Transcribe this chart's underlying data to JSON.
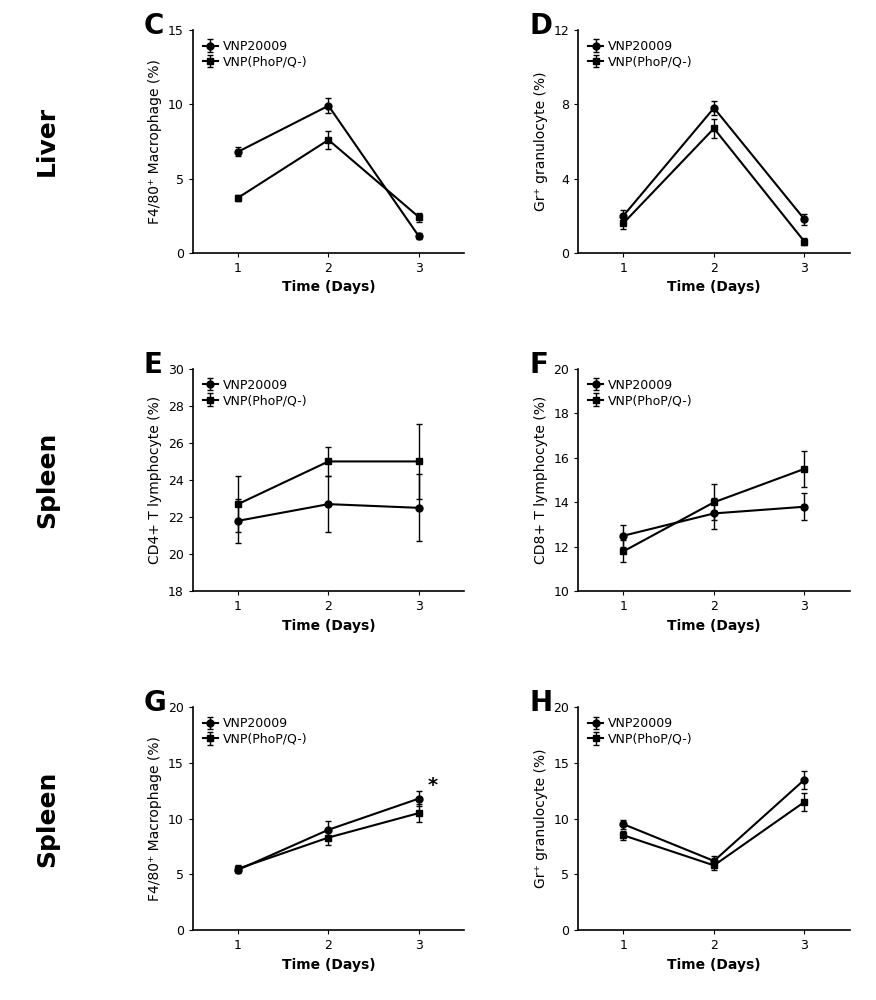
{
  "panels": [
    {
      "label": "C",
      "ylabel": "F4/80⁺ Macrophage (%)",
      "ylim": [
        0,
        15
      ],
      "yticks": [
        0,
        5,
        10,
        15
      ],
      "series1": {
        "y": [
          6.8,
          9.9,
          1.1
        ],
        "yerr": [
          0.3,
          0.5,
          0.2
        ]
      },
      "series2": {
        "y": [
          3.7,
          7.6,
          2.4
        ],
        "yerr": [
          0.2,
          0.6,
          0.3
        ]
      },
      "annotation": null,
      "legend_loc": "upper left"
    },
    {
      "label": "D",
      "ylabel": "Gr⁺ granulocyte (%)",
      "ylim": [
        0,
        12
      ],
      "yticks": [
        0,
        4,
        8,
        12
      ],
      "series1": {
        "y": [
          2.0,
          7.8,
          1.8
        ],
        "yerr": [
          0.3,
          0.4,
          0.3
        ]
      },
      "series2": {
        "y": [
          1.6,
          6.7,
          0.6
        ],
        "yerr": [
          0.3,
          0.5,
          0.2
        ]
      },
      "annotation": null,
      "legend_loc": "upper left"
    },
    {
      "label": "E",
      "ylabel": "CD4+ T lymphocyte (%)",
      "ylim": [
        18,
        30
      ],
      "yticks": [
        18,
        20,
        22,
        24,
        26,
        28,
        30
      ],
      "series1": {
        "y": [
          21.8,
          22.7,
          22.5
        ],
        "yerr": [
          1.2,
          1.5,
          1.8
        ]
      },
      "series2": {
        "y": [
          22.7,
          25.0,
          25.0
        ],
        "yerr": [
          1.5,
          0.8,
          2.0
        ]
      },
      "annotation": null,
      "legend_loc": "upper left"
    },
    {
      "label": "F",
      "ylabel": "CD8+ T lymphocyte (%)",
      "ylim": [
        10,
        20
      ],
      "yticks": [
        10,
        12,
        14,
        16,
        18,
        20
      ],
      "series1": {
        "y": [
          12.5,
          13.5,
          13.8
        ],
        "yerr": [
          0.5,
          0.7,
          0.6
        ]
      },
      "series2": {
        "y": [
          11.8,
          14.0,
          15.5
        ],
        "yerr": [
          0.5,
          0.8,
          0.8
        ]
      },
      "annotation": null,
      "legend_loc": "upper left"
    },
    {
      "label": "G",
      "ylabel": "F4/80⁺ Macrophage (%)",
      "ylim": [
        0,
        20
      ],
      "yticks": [
        0,
        5,
        10,
        15,
        20
      ],
      "series1": {
        "y": [
          5.4,
          9.0,
          11.8
        ],
        "yerr": [
          0.3,
          0.8,
          0.7
        ]
      },
      "series2": {
        "y": [
          5.5,
          8.3,
          10.5
        ],
        "yerr": [
          0.3,
          0.7,
          0.8
        ]
      },
      "annotation": "*",
      "legend_loc": "upper left"
    },
    {
      "label": "H",
      "ylabel": "Gr⁺ granulocyte (%)",
      "ylim": [
        0,
        20
      ],
      "yticks": [
        0,
        5,
        10,
        15,
        20
      ],
      "series1": {
        "y": [
          9.5,
          6.2,
          13.5
        ],
        "yerr": [
          0.4,
          0.4,
          0.8
        ]
      },
      "series2": {
        "y": [
          8.5,
          5.8,
          11.5
        ],
        "yerr": [
          0.4,
          0.4,
          0.8
        ]
      },
      "annotation": null,
      "legend_loc": "upper left"
    }
  ],
  "row_labels": [
    "Liver",
    "Spleen",
    "Spleen"
  ],
  "xdata": [
    1,
    2,
    3
  ],
  "xlabel": "Time (Days)",
  "legend_labels": [
    "VNP20009",
    "VNP(PhoP/Q-)"
  ],
  "line_color": "#000000",
  "marker_circle": "o",
  "marker_square": "s",
  "markersize": 5,
  "linewidth": 1.5,
  "capsize": 2,
  "background_color": "#ffffff",
  "row_label_fontsize": 18,
  "panel_label_fontsize": 20,
  "axis_label_fontsize": 10,
  "tick_fontsize": 9,
  "legend_fontsize": 9
}
